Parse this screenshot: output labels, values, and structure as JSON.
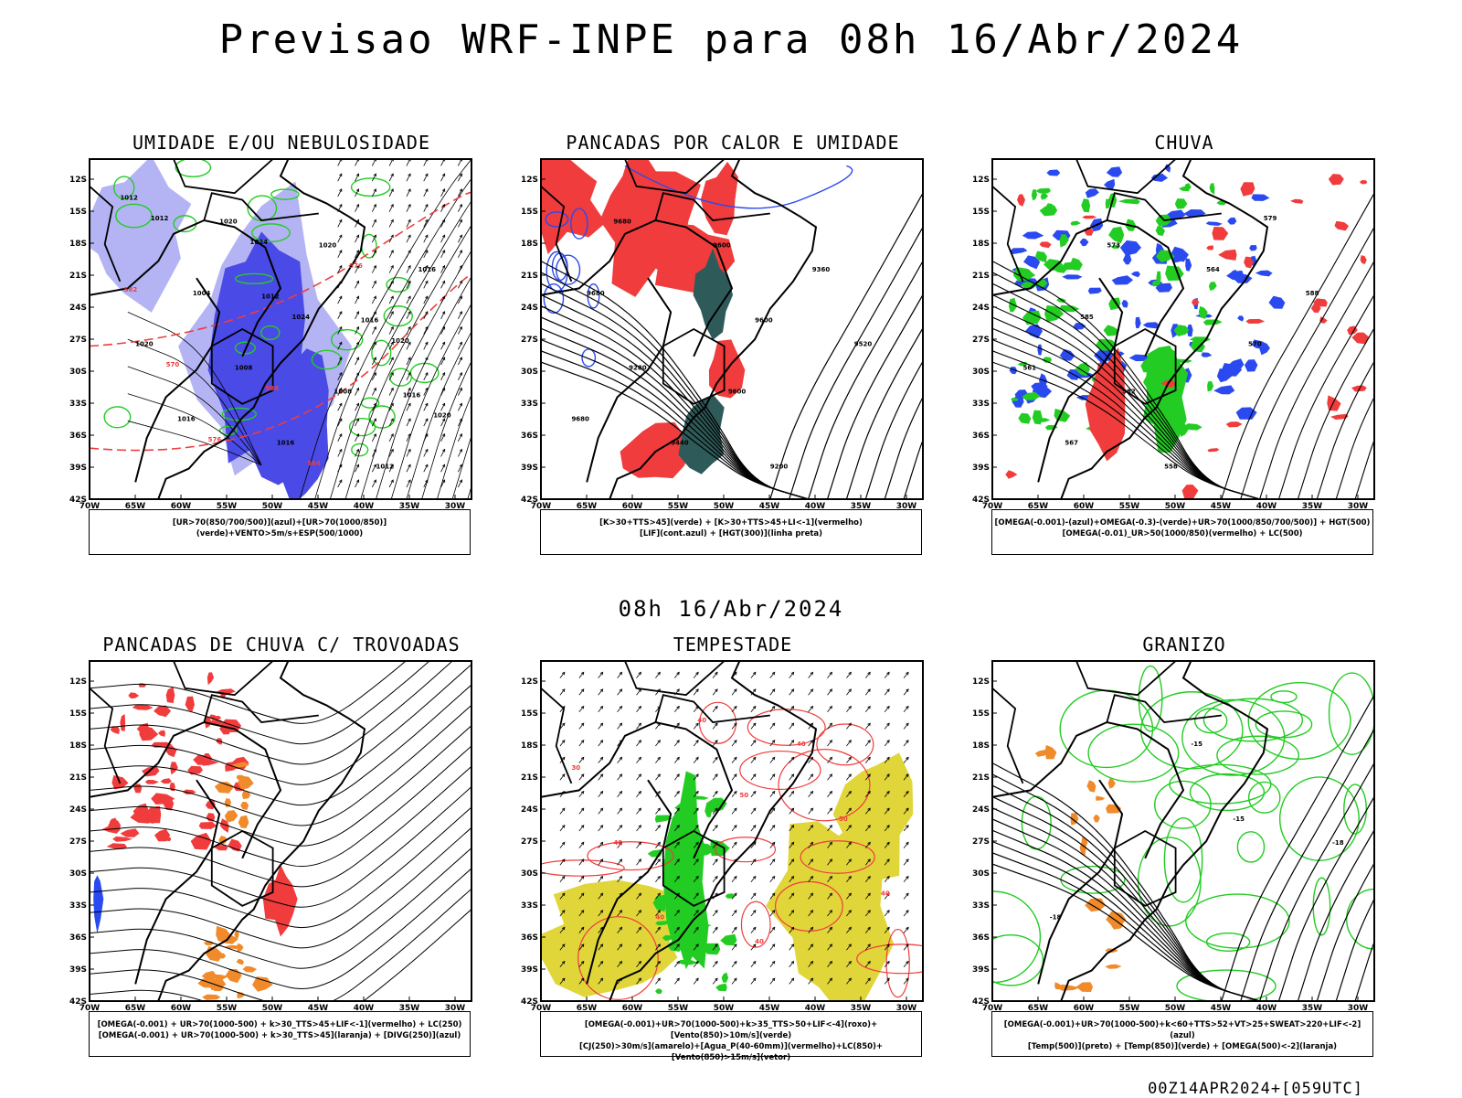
{
  "main_title": "Previsao WRF-INPE  para 08h 16/Abr/2024",
  "mid_title": "08h 16/Abr/2024",
  "footer": "00Z14APR2024+[059UTC]",
  "lat_ticks": [
    "12S",
    "15S",
    "18S",
    "21S",
    "24S",
    "27S",
    "30S",
    "33S",
    "36S",
    "39S",
    "42S"
  ],
  "lon_ticks": [
    "70W",
    "65W",
    "60W",
    "55W",
    "50W",
    "45W",
    "40W",
    "35W",
    "30W"
  ],
  "colors": {
    "humidity_dark": "#4a4ae6",
    "humidity_light": "#b4b4f4",
    "green": "#22cc22",
    "red": "#f03c3c",
    "blue": "#2a4af0",
    "dark_teal": "#2f5a5a",
    "yellow": "#e0d63a",
    "orange": "#f08a2a"
  },
  "panels": [
    {
      "title": "UMIDADE E/OU NEBULOSIDADE",
      "legend": [
        "[UR>70(850/700/500)](azul)+[UR>70(1000/850)](verde)+VENTO>5m/s+ESP(500/1000)"
      ],
      "contour_labels": [
        "1012",
        "1012",
        "1016",
        "1020",
        "1016",
        "1016",
        "1020",
        "1020",
        "1016",
        "1016",
        "1008",
        "1012",
        "1004",
        "1008",
        "1012",
        "1024",
        "1020",
        "1024",
        "1020",
        "576",
        "576",
        "570",
        "564",
        "582",
        "588"
      ]
    },
    {
      "title": "PANCADAS POR CALOR E UMIDADE",
      "legend": [
        "[K>30+TTS>45](verde) + [K>30+TTS>45+LI<-1](vermelho)",
        "[LIF](cont.azul) + [HGT(300)](linha preta)"
      ],
      "contour_labels": [
        "9680",
        "9600",
        "9680",
        "9600",
        "9520",
        "9440",
        "9360",
        "9280",
        "9200",
        "9680",
        "9600"
      ]
    },
    {
      "title": "CHUVA",
      "legend": [
        "[OMEGA(-0.001)-(azul)+OMEGA(-0.3)-(verde)+UR>70(1000/850/700/500)] + HGT(500)",
        "[OMEGA(-0.01)_UR>50(1000/850)(vermelho) + LC(500)"
      ],
      "contour_labels": [
        "573",
        "570",
        "567",
        "564",
        "561",
        "558",
        "588",
        "582",
        "579",
        "585"
      ]
    },
    {
      "title": "PANCADAS DE CHUVA C/ TROVOADAS",
      "legend": [
        "[OMEGA(-0.001) + UR>70(1000-500) + k>30_TTS>45+LIF<-1](vermelho) + LC(250)",
        "[OMEGA(-0.001) + UR>70(1000-500) + k>30_TTS>45](laranja) + [DIVG(250)](azul)"
      ],
      "contour_labels": []
    },
    {
      "title": "TEMPESTADE",
      "legend": [
        "[OMEGA(-0.001)+UR>70(1000-500)+k>35_TTS>50+LIF<-4](roxo)+[Vento(850)>10m/s](verde)",
        "[CJ(250)>30m/s](amarelo)+[Agua_P(40-60mm)](vermelho)+LC(850)+[Vento(850)>15m/s](vetor)"
      ],
      "contour_labels": [
        "50",
        "40",
        "40",
        "50",
        "40",
        "40",
        "40",
        "40",
        "30"
      ]
    },
    {
      "title": "GRANIZO",
      "legend": [
        "[OMEGA(-0.001)+UR>70(1000-500)+k<60+TTS>52+VT>25+SWEAT>220+LIF<-2](azul)",
        "[Temp(500)](preto) + [Temp(850)](verde) + [OMEGA(500)<-2](laranja)"
      ],
      "contour_labels": [
        "-15",
        "-18",
        "-15",
        "-18"
      ]
    }
  ]
}
